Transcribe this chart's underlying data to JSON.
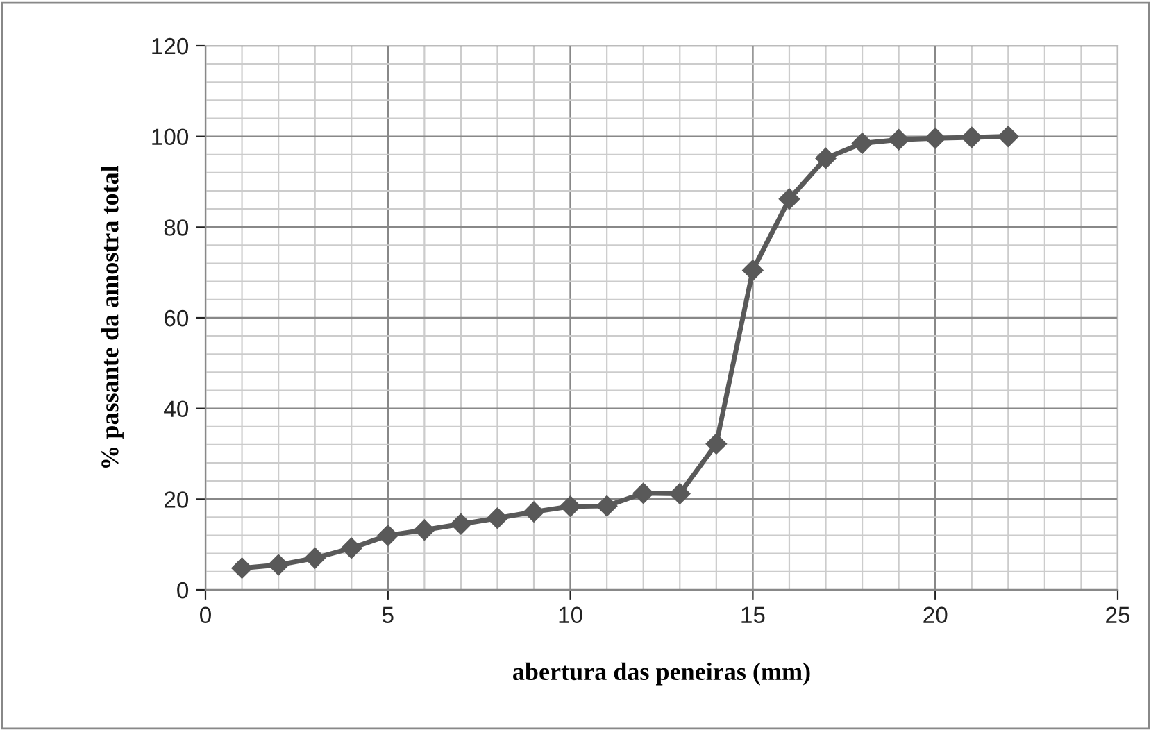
{
  "chart_data": {
    "type": "line",
    "xlabel": "abertura das peneiras (mm)",
    "ylabel": "% passante da amostra total",
    "x": [
      1,
      2,
      3,
      4,
      5,
      6,
      7,
      8,
      9,
      10,
      11,
      12,
      13,
      14,
      15,
      16,
      17,
      18,
      19,
      20,
      21,
      22
    ],
    "series": [
      {
        "color": "#595959",
        "values": [
          4.8,
          5.5,
          7,
          9.2,
          12,
          13.2,
          14.5,
          15.8,
          17.2,
          18.4,
          18.5,
          21.3,
          21.2,
          32.2,
          70.5,
          86.2,
          95.2,
          98.5,
          99.3,
          99.6,
          99.8,
          100
        ]
      }
    ],
    "xlim": [
      0,
      25
    ],
    "xticks": [
      0,
      5,
      10,
      15,
      20,
      25
    ],
    "ylim": [
      0,
      120
    ],
    "yticks": [
      0,
      20,
      40,
      60,
      80,
      100,
      120
    ],
    "grid": true,
    "marker": "diamond",
    "line_style": "solid",
    "legend": false
  }
}
